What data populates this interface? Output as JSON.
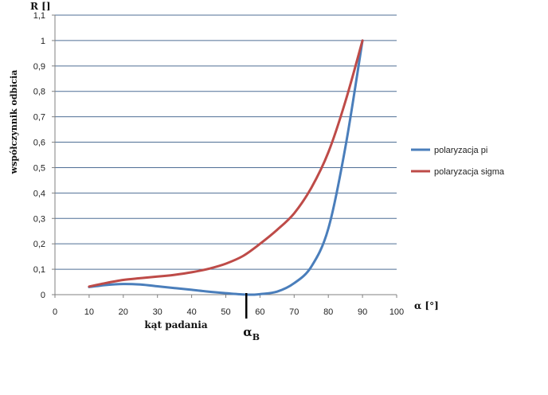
{
  "chart_data": {
    "type": "line",
    "ylabel": "współczynnik odbicia",
    "y_axis_title": "R []",
    "x_axis_title": "α [°]",
    "xlabel": "kąt padania",
    "brewster_marker": {
      "label": "α",
      "subscript": "B",
      "x": 56
    },
    "xlim": [
      0,
      100
    ],
    "ylim": [
      0,
      1.1
    ],
    "x_ticks": [
      0,
      10,
      20,
      30,
      40,
      50,
      60,
      70,
      80,
      90,
      100
    ],
    "x_tick_labels": [
      "0",
      "10",
      "20",
      "30",
      "40",
      "50",
      "60",
      "70",
      "80",
      "90",
      "100"
    ],
    "y_ticks": [
      0,
      0.1,
      0.2,
      0.3,
      0.4,
      0.5,
      0.6,
      0.7,
      0.8,
      0.9,
      1,
      1.1
    ],
    "y_tick_labels": [
      "0",
      "0,1",
      "0,2",
      "0,3",
      "0,4",
      "0,5",
      "0,6",
      "0,7",
      "0,8",
      "0,9",
      "1",
      "1,1"
    ],
    "grid": true,
    "legend_position": "right",
    "series": [
      {
        "name": "polaryzacja pi",
        "color": "#4a7ebb",
        "x": [
          10,
          15,
          20,
          25,
          30,
          35,
          40,
          45,
          50,
          55,
          58,
          60,
          65,
          70,
          75,
          80,
          85,
          90
        ],
        "y": [
          0.03,
          0.038,
          0.042,
          0.04,
          0.033,
          0.026,
          0.019,
          0.012,
          0.006,
          0.001,
          0.0,
          0.002,
          0.012,
          0.045,
          0.11,
          0.26,
          0.58,
          1.0
        ]
      },
      {
        "name": "polaryzacja sigma",
        "color": "#be4b48",
        "x": [
          10,
          15,
          20,
          25,
          30,
          35,
          40,
          45,
          50,
          55,
          60,
          65,
          70,
          75,
          80,
          85,
          90
        ],
        "y": [
          0.032,
          0.046,
          0.058,
          0.065,
          0.071,
          0.078,
          0.088,
          0.102,
          0.122,
          0.152,
          0.2,
          0.255,
          0.32,
          0.42,
          0.56,
          0.76,
          1.0
        ]
      }
    ]
  }
}
